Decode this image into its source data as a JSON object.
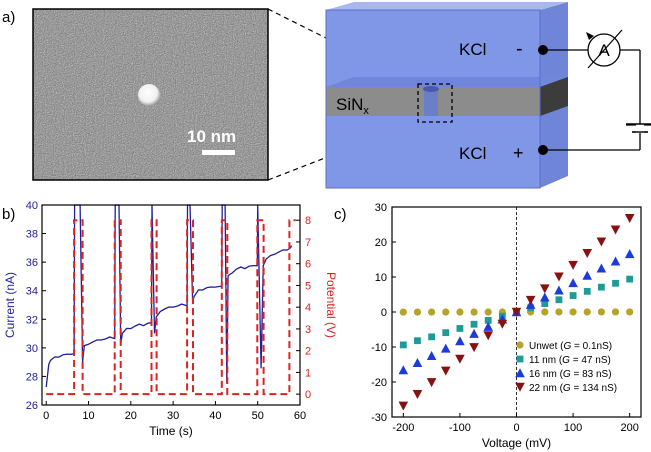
{
  "panel_a": {
    "label": "a)",
    "scale_bar_text": "10 nm",
    "kcl_top": "KCl",
    "kcl_bottom": "KCl",
    "sign_minus": "-",
    "sign_plus": "+",
    "ammeter": "A",
    "membrane": "SiN",
    "membrane_sub": "x",
    "colors": {
      "electrolyte": "#7f97e6",
      "membrane": "#8c8c8c",
      "top_layer": "#3c3c3c"
    }
  },
  "chart_data": [
    {
      "id": "panel_b",
      "panel_label": "b)",
      "type": "line",
      "xlabel": "Time (s)",
      "ylabel": "Current (nA)",
      "ylabel2": "Potential (V)",
      "xlim": [
        -1,
        60
      ],
      "ylim": [
        26,
        40
      ],
      "ylim2": [
        -0.5,
        8.7
      ],
      "xticks": [
        0,
        10,
        20,
        30,
        40,
        50,
        60
      ],
      "yticks": [
        26,
        28,
        30,
        32,
        34,
        36,
        38,
        40
      ],
      "yticks2": [
        0,
        1,
        2,
        3,
        4,
        5,
        6,
        7,
        8
      ],
      "current_color": "#1f1f9a",
      "potential_color": "#dd2222",
      "series": [
        {
          "name": "Current",
          "axis": "left",
          "x": [
            0,
            0.6,
            1,
            2,
            3,
            4,
            5,
            6,
            6.6,
            6.7,
            8,
            8.6,
            9,
            10,
            11,
            12,
            13,
            14,
            15,
            16.2,
            16.3,
            17.2,
            17.6,
            18,
            19,
            20,
            21,
            22,
            23,
            24,
            24.9,
            25,
            25.6,
            26,
            27,
            28,
            29,
            30,
            31,
            32,
            33.3,
            33.4,
            34,
            34.6,
            35,
            36,
            37,
            38,
            39,
            40,
            41.5,
            41.6,
            42.3,
            42.7,
            43,
            44,
            45,
            46,
            47,
            48,
            49,
            49.9,
            50,
            50.8,
            51.3,
            52,
            53,
            54,
            55,
            56,
            57,
            57.8,
            58
          ],
          "values": [
            27.2,
            28.9,
            29.1,
            29.3,
            29.4,
            29.5,
            29.5,
            29.6,
            29.6,
            40,
            40,
            29.0,
            30.1,
            30.3,
            30.4,
            30.5,
            30.6,
            30.6,
            30.7,
            30.7,
            40,
            40,
            30.3,
            31.0,
            31.3,
            31.4,
            31.5,
            31.6,
            31.6,
            31.7,
            31.7,
            40,
            31.0,
            32.1,
            32.6,
            32.7,
            32.8,
            32.9,
            32.9,
            33.0,
            33.0,
            40,
            40,
            33.3,
            33.6,
            34.0,
            34.1,
            34.2,
            34.2,
            34.3,
            34.3,
            40,
            40,
            27.5,
            35.0,
            35.3,
            35.5,
            35.6,
            35.6,
            35.7,
            35.7,
            35.8,
            40,
            28.5,
            35.8,
            36.2,
            36.4,
            36.6,
            36.7,
            36.8,
            36.9,
            37.0,
            37.1
          ]
        },
        {
          "name": "Potential",
          "axis": "right",
          "x": [
            0,
            6.6,
            6.6,
            8.6,
            8.6,
            16.2,
            16.2,
            17.6,
            17.6,
            24.9,
            24.9,
            26.1,
            26.1,
            33.3,
            33.3,
            34.7,
            34.7,
            41.5,
            41.5,
            42.8,
            42.8,
            49.9,
            49.9,
            51.4,
            51.4,
            57.5,
            57.5,
            59
          ],
          "values": [
            0,
            0,
            8,
            8,
            0,
            0,
            8,
            8,
            0,
            0,
            8,
            8,
            0,
            0,
            8,
            8,
            0,
            0,
            8,
            8,
            0,
            0,
            8,
            8,
            0,
            0,
            8,
            8
          ]
        }
      ]
    },
    {
      "id": "panel_c",
      "panel_label": "c)",
      "type": "scatter",
      "xlabel": "Voltage (mV)",
      "ylabel": "",
      "xlim": [
        -220,
        220
      ],
      "ylim": [
        -30,
        30
      ],
      "xticks": [
        -200,
        -100,
        0,
        100,
        200
      ],
      "yticks": [
        -30,
        -20,
        -10,
        0,
        10,
        20,
        30
      ],
      "x": [
        -200,
        -175,
        -150,
        -125,
        -100,
        -75,
        -50,
        -25,
        0,
        25,
        50,
        75,
        100,
        125,
        150,
        175,
        200
      ],
      "series": [
        {
          "name": "Unwet",
          "label_pre": "Unwet (",
          "label_g": "G",
          "label_post": " = 0.1nS)",
          "marker": "circle",
          "color": "#b5a42a",
          "values": [
            -0.02,
            -0.02,
            -0.02,
            -0.01,
            -0.01,
            -0.01,
            -0.01,
            0,
            0,
            0,
            0.01,
            0.01,
            0.01,
            0.01,
            0.02,
            0.02,
            0.02
          ]
        },
        {
          "name": "11 nm",
          "label_pre": "11 nm (",
          "label_g": "G",
          "label_post": " = 47 nS)",
          "marker": "square",
          "color": "#1f9a96",
          "values": [
            -9.4,
            -8.2,
            -7.1,
            -5.9,
            -4.7,
            -3.5,
            -2.4,
            -1.2,
            0,
            1.2,
            2.4,
            3.5,
            4.7,
            5.9,
            7.1,
            8.2,
            9.4
          ]
        },
        {
          "name": "16 nm",
          "label_pre": "16 nm (",
          "label_g": "G",
          "label_post": " = 83 nS)",
          "marker": "triangle-up",
          "color": "#1c3cd8",
          "values": [
            -16.6,
            -14.5,
            -12.5,
            -10.4,
            -8.3,
            -6.2,
            -4.2,
            -2.1,
            0,
            2.1,
            4.2,
            6.2,
            8.3,
            10.4,
            12.5,
            14.5,
            16.6
          ]
        },
        {
          "name": "22 nm",
          "label_pre": "22 nm (",
          "label_g": "G",
          "label_post": " = 134 nS)",
          "marker": "triangle-down",
          "color": "#8a1010",
          "values": [
            -26.8,
            -23.5,
            -20.1,
            -16.8,
            -13.4,
            -10.1,
            -6.7,
            -3.4,
            0,
            3.4,
            6.7,
            10.1,
            13.4,
            16.8,
            20.1,
            23.5,
            26.8
          ]
        }
      ]
    }
  ]
}
